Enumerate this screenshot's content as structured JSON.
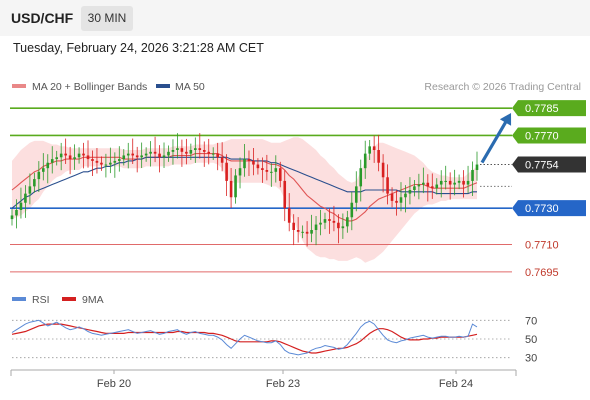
{
  "header": {
    "pair": "USD/CHF",
    "timeframe": "30 MIN"
  },
  "datetime": "Tuesday, February 24, 2026 3:21:28 AM CET",
  "legend": {
    "bb": "MA 20 + Bollinger Bands",
    "ma50": "MA 50",
    "rsi": "RSI",
    "rsi_ma": "9MA"
  },
  "source": "Research © 2026 Trading Central",
  "colors": {
    "bullish": "#2a9a2a",
    "bearish": "#d92020",
    "bb_fill": "#fcd9d9",
    "ma20": "#e05555",
    "ma50": "#2a4f8e",
    "green_level": "#5aab1e",
    "blue_level": "#2566c8",
    "red_level": "#e06a6a",
    "current": "#333333",
    "rsi": "#5b8ad6",
    "rsi_ma": "#d42020",
    "arrow": "#2a6bb0"
  },
  "chart_data": [
    {
      "type": "candlestick",
      "title": "USD/CHF 30 MIN",
      "x_tick_labels": [
        "Feb 20",
        "Feb 23",
        "Feb 24"
      ],
      "ylim": [
        0.7685,
        0.7795
      ],
      "current_price": 0.7754,
      "levels": [
        {
          "value": 0.7785,
          "label": "0.7785",
          "style": "green"
        },
        {
          "value": 0.777,
          "label": "0.7770",
          "style": "green"
        },
        {
          "value": 0.773,
          "label": "0.7730",
          "style": "blue"
        },
        {
          "value": 0.771,
          "label": "0.7710",
          "style": "red"
        },
        {
          "value": 0.7695,
          "label": "0.7695",
          "style": "red"
        }
      ],
      "current_label": "0.7754",
      "forecast": {
        "from": 0.7754,
        "to": 0.7785,
        "direction": "up"
      },
      "series_close": [
        0.7726,
        0.7729,
        0.7733,
        0.7738,
        0.7742,
        0.7746,
        0.775,
        0.7752,
        0.7755,
        0.7757,
        0.7758,
        0.776,
        0.7759,
        0.7757,
        0.7758,
        0.776,
        0.7759,
        0.7757,
        0.7756,
        0.7755,
        0.7754,
        0.7754,
        0.7755,
        0.7756,
        0.7757,
        0.7759,
        0.776,
        0.7759,
        0.7758,
        0.7759,
        0.776,
        0.7761,
        0.776,
        0.7758,
        0.7759,
        0.7761,
        0.7762,
        0.7763,
        0.7761,
        0.776,
        0.7762,
        0.7763,
        0.7762,
        0.7761,
        0.776,
        0.776,
        0.7758,
        0.7755,
        0.7745,
        0.7736,
        0.7748,
        0.7752,
        0.7757,
        0.7756,
        0.7754,
        0.7752,
        0.7751,
        0.775,
        0.775,
        0.7752,
        0.7745,
        0.773,
        0.7722,
        0.7718,
        0.7717,
        0.7717,
        0.7716,
        0.7718,
        0.7721,
        0.7722,
        0.7724,
        0.7723,
        0.7722,
        0.7719,
        0.772,
        0.7725,
        0.7733,
        0.7742,
        0.7752,
        0.776,
        0.7764,
        0.7762,
        0.7755,
        0.7747,
        0.7738,
        0.7734,
        0.7733,
        0.7736,
        0.7738,
        0.774,
        0.7742,
        0.7743,
        0.7744,
        0.7742,
        0.7741,
        0.7743,
        0.7745,
        0.7745,
        0.7743,
        0.7744,
        0.7745,
        0.7743,
        0.7745,
        0.7751,
        0.7754
      ],
      "ma20": [
        0.774,
        0.7742,
        0.7744,
        0.7746,
        0.7748,
        0.775,
        0.7751,
        0.7753,
        0.7754,
        0.7755,
        0.7756,
        0.7756,
        0.7757,
        0.7757,
        0.7757,
        0.7757,
        0.7758,
        0.7758,
        0.7758,
        0.7758,
        0.7758,
        0.7758,
        0.7758,
        0.7758,
        0.7758,
        0.7757,
        0.7757,
        0.7757,
        0.7757,
        0.7757,
        0.7758,
        0.7758,
        0.7758,
        0.7758,
        0.7758,
        0.7758,
        0.7759,
        0.7759,
        0.7759,
        0.7759,
        0.7759,
        0.776,
        0.776,
        0.776,
        0.776,
        0.776,
        0.776,
        0.7759,
        0.7757,
        0.7756,
        0.7756,
        0.7756,
        0.7756,
        0.7756,
        0.7756,
        0.7756,
        0.7756,
        0.7755,
        0.7754,
        0.7754,
        0.7753,
        0.7751,
        0.7748,
        0.7746,
        0.7743,
        0.774,
        0.7737,
        0.7735,
        0.7733,
        0.7731,
        0.773,
        0.7728,
        0.7727,
        0.7725,
        0.7724,
        0.7723,
        0.7723,
        0.7724,
        0.7726,
        0.7728,
        0.7731,
        0.7733,
        0.7735,
        0.7736,
        0.7737,
        0.7738,
        0.7739,
        0.774,
        0.7741,
        0.7742,
        0.7743,
        0.7743,
        0.7743,
        0.7742,
        0.7741,
        0.7741,
        0.7741,
        0.7741,
        0.7741,
        0.7741,
        0.7741,
        0.7741,
        0.7742,
        0.7743,
        0.7744
      ],
      "bb_width": [
        0.0016,
        0.0017,
        0.0018,
        0.0018,
        0.0018,
        0.0017,
        0.0016,
        0.0014,
        0.0012,
        0.001,
        0.0009,
        0.0008,
        0.0007,
        0.0006,
        0.0006,
        0.0006,
        0.0005,
        0.0005,
        0.0005,
        0.0005,
        0.0005,
        0.0005,
        0.0005,
        0.0005,
        0.0005,
        0.0005,
        0.0005,
        0.0005,
        0.0005,
        0.0005,
        0.0005,
        0.0005,
        0.0005,
        0.0005,
        0.0005,
        0.0005,
        0.0005,
        0.0005,
        0.0005,
        0.0005,
        0.0005,
        0.0005,
        0.0005,
        0.0005,
        0.0005,
        0.0005,
        0.0006,
        0.0007,
        0.001,
        0.0012,
        0.0012,
        0.0012,
        0.0012,
        0.0012,
        0.0012,
        0.0012,
        0.0012,
        0.0012,
        0.0012,
        0.0012,
        0.0013,
        0.0016,
        0.002,
        0.0023,
        0.0026,
        0.0028,
        0.0029,
        0.0029,
        0.0029,
        0.0028,
        0.0027,
        0.0026,
        0.0025,
        0.0024,
        0.0023,
        0.0022,
        0.0021,
        0.0021,
        0.0024,
        0.0028,
        0.003,
        0.0031,
        0.0031,
        0.003,
        0.0028,
        0.0026,
        0.0024,
        0.0022,
        0.002,
        0.0018,
        0.0016,
        0.0014,
        0.0012,
        0.001,
        0.0009,
        0.0008,
        0.0007,
        0.0007,
        0.0006,
        0.0006,
        0.0006,
        0.0006,
        0.0007,
        0.0008,
        0.0009
      ],
      "ma50": [
        0.773,
        0.7732,
        0.7734,
        0.7736,
        0.7737,
        0.7739,
        0.774,
        0.7741,
        0.7742,
        0.7743,
        0.7744,
        0.7745,
        0.7746,
        0.7747,
        0.7748,
        0.7749,
        0.775,
        0.775,
        0.7751,
        0.7752,
        0.7752,
        0.7753,
        0.7753,
        0.7754,
        0.7755,
        0.7755,
        0.7756,
        0.7756,
        0.7757,
        0.7757,
        0.7758,
        0.7758,
        0.7758,
        0.7758,
        0.7758,
        0.7758,
        0.7758,
        0.7758,
        0.7758,
        0.7758,
        0.7758,
        0.7758,
        0.7758,
        0.7758,
        0.7758,
        0.7758,
        0.7758,
        0.7758,
        0.7758,
        0.7757,
        0.7757,
        0.7757,
        0.7757,
        0.7757,
        0.7756,
        0.7756,
        0.7756,
        0.7756,
        0.7755,
        0.7755,
        0.7754,
        0.7753,
        0.7752,
        0.7751,
        0.775,
        0.7749,
        0.7748,
        0.7747,
        0.7746,
        0.7745,
        0.7744,
        0.7743,
        0.7742,
        0.7741,
        0.774,
        0.7739,
        0.7739,
        0.7739,
        0.7739,
        0.774,
        0.774,
        0.774,
        0.774,
        0.774,
        0.774,
        0.774,
        0.774,
        0.7739,
        0.7739,
        0.7739,
        0.7739,
        0.7739,
        0.7739,
        0.7739,
        0.7739,
        0.7738,
        0.7738,
        0.7738,
        0.7738,
        0.7738,
        0.7738,
        0.7738,
        0.7738,
        0.7739,
        0.7739
      ]
    },
    {
      "type": "line",
      "title": "RSI",
      "ylim": [
        20,
        80
      ],
      "y_ticks": [
        70,
        50,
        30
      ],
      "series": [
        {
          "name": "RSI",
          "values": [
            57,
            60,
            63,
            66,
            68,
            69,
            70,
            67,
            64,
            66,
            68,
            65,
            62,
            60,
            61,
            63,
            61,
            58,
            56,
            55,
            54,
            55,
            56,
            57,
            58,
            59,
            60,
            58,
            56,
            57,
            58,
            59,
            57,
            55,
            56,
            58,
            59,
            60,
            57,
            55,
            57,
            58,
            56,
            55,
            54,
            54,
            52,
            49,
            44,
            40,
            45,
            50,
            54,
            52,
            50,
            48,
            47,
            46,
            46,
            48,
            44,
            38,
            35,
            34,
            33,
            34,
            35,
            38,
            40,
            41,
            43,
            42,
            41,
            39,
            40,
            44,
            50,
            56,
            63,
            67,
            69,
            66,
            60,
            54,
            49,
            47,
            46,
            48,
            49,
            51,
            52,
            53,
            54,
            52,
            51,
            52,
            53,
            53,
            52,
            52,
            53,
            52,
            53,
            66,
            63
          ]
        },
        {
          "name": "9MA",
          "values": [
            55,
            56,
            57,
            58,
            60,
            62,
            64,
            65,
            66,
            66,
            66,
            66,
            65,
            64,
            63,
            62,
            61,
            60,
            59,
            58,
            57,
            56,
            56,
            56,
            56,
            56,
            57,
            57,
            57,
            57,
            57,
            57,
            57,
            57,
            57,
            57,
            57,
            58,
            58,
            57,
            57,
            57,
            57,
            57,
            56,
            56,
            55,
            54,
            52,
            50,
            48,
            47,
            47,
            47,
            47,
            47,
            47,
            47,
            48,
            48,
            47,
            45,
            43,
            41,
            39,
            37,
            36,
            35,
            35,
            36,
            37,
            38,
            39,
            40,
            40,
            41,
            43,
            45,
            48,
            52,
            56,
            59,
            61,
            61,
            60,
            58,
            55,
            52,
            50,
            49,
            49,
            49,
            50,
            50,
            51,
            51,
            52,
            52,
            52,
            52,
            52,
            52,
            53,
            54,
            55
          ]
        }
      ]
    }
  ]
}
